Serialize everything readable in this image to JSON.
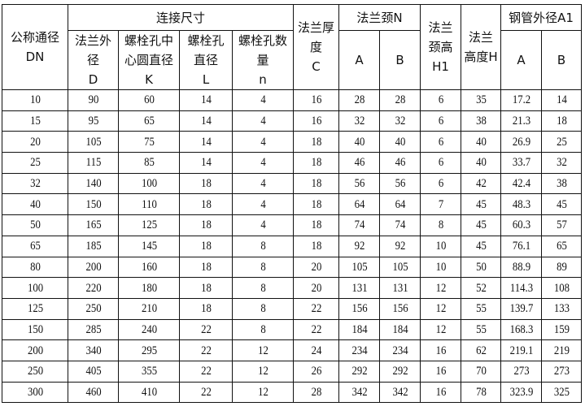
{
  "headers": {
    "dn": [
      "公称通径",
      "DN"
    ],
    "connection": "连接尺寸",
    "D": [
      "法兰外",
      "径",
      "D"
    ],
    "K": [
      "螺栓孔中",
      "心圆直径",
      "K"
    ],
    "L": [
      "螺栓孔",
      "直径",
      "L"
    ],
    "n": [
      "螺栓孔数",
      "量",
      "n"
    ],
    "C": [
      "法兰厚",
      "度",
      "C"
    ],
    "neck_N": "法兰颈N",
    "H1": [
      "法兰",
      "颈高",
      "H1"
    ],
    "H": [
      "法兰",
      "高度H"
    ],
    "pipe_A1": "钢管外径A1",
    "A": "A",
    "B": "B"
  },
  "rows": [
    [
      "10",
      "90",
      "60",
      "14",
      "4",
      "16",
      "28",
      "28",
      "6",
      "35",
      "17.2",
      "14"
    ],
    [
      "15",
      "95",
      "65",
      "14",
      "4",
      "16",
      "32",
      "32",
      "6",
      "38",
      "21.3",
      "18"
    ],
    [
      "20",
      "105",
      "75",
      "14",
      "4",
      "18",
      "40",
      "40",
      "6",
      "40",
      "26.9",
      "25"
    ],
    [
      "25",
      "115",
      "85",
      "14",
      "4",
      "18",
      "46",
      "46",
      "6",
      "40",
      "33.7",
      "32"
    ],
    [
      "32",
      "140",
      "100",
      "18",
      "4",
      "18",
      "56",
      "56",
      "6",
      "42",
      "42.4",
      "38"
    ],
    [
      "40",
      "150",
      "110",
      "18",
      "4",
      "18",
      "64",
      "64",
      "7",
      "45",
      "48.3",
      "45"
    ],
    [
      "50",
      "165",
      "125",
      "18",
      "4",
      "18",
      "74",
      "74",
      "8",
      "45",
      "60.3",
      "57"
    ],
    [
      "65",
      "185",
      "145",
      "18",
      "8",
      "18",
      "92",
      "92",
      "10",
      "45",
      "76.1",
      "65"
    ],
    [
      "80",
      "200",
      "160",
      "18",
      "8",
      "20",
      "105",
      "105",
      "10",
      "50",
      "88.9",
      "89"
    ],
    [
      "100",
      "220",
      "180",
      "18",
      "8",
      "20",
      "131",
      "131",
      "12",
      "52",
      "114.3",
      "108"
    ],
    [
      "125",
      "250",
      "210",
      "18",
      "8",
      "22",
      "156",
      "156",
      "12",
      "55",
      "139.7",
      "133"
    ],
    [
      "150",
      "285",
      "240",
      "22",
      "8",
      "22",
      "184",
      "184",
      "12",
      "55",
      "168.3",
      "159"
    ],
    [
      "200",
      "340",
      "295",
      "22",
      "12",
      "24",
      "234",
      "234",
      "16",
      "62",
      "219.1",
      "219"
    ],
    [
      "250",
      "405",
      "355",
      "22",
      "12",
      "26",
      "292",
      "292",
      "16",
      "70",
      "273",
      "273"
    ],
    [
      "300",
      "460",
      "410",
      "22",
      "12",
      "28",
      "342",
      "342",
      "16",
      "78",
      "323.9",
      "325"
    ]
  ]
}
